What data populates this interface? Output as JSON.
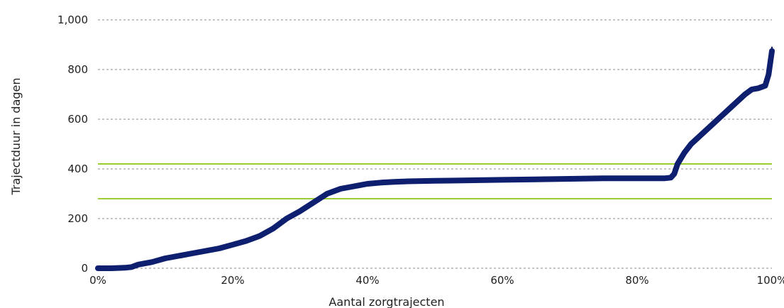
{
  "chart_data": {
    "type": "line",
    "title": "",
    "xlabel": "Aantal zorgtrajecten",
    "ylabel": "Trajectduur in dagen",
    "xlim": [
      0,
      100
    ],
    "ylim": [
      0,
      1000
    ],
    "x_ticks": [
      {
        "value": 0,
        "label": "0%"
      },
      {
        "value": 20,
        "label": "20%"
      },
      {
        "value": 40,
        "label": "40%"
      },
      {
        "value": 60,
        "label": "60%"
      },
      {
        "value": 80,
        "label": "80%"
      },
      {
        "value": 100,
        "label": "100%"
      }
    ],
    "y_ticks": [
      {
        "value": 0,
        "label": "0"
      },
      {
        "value": 200,
        "label": "200"
      },
      {
        "value": 400,
        "label": "400"
      },
      {
        "value": 600,
        "label": "600"
      },
      {
        "value": 800,
        "label": "800"
      },
      {
        "value": 1000,
        "label": "1,000"
      }
    ],
    "grid": "horizontal-dashed",
    "series": [
      {
        "color": "#0d1f6e",
        "x": [
          0,
          2,
          4,
          5,
          6,
          8,
          10,
          12,
          14,
          16,
          18,
          20,
          22,
          24,
          26,
          28,
          30,
          32,
          34,
          36,
          38,
          40,
          42,
          44,
          46,
          50,
          55,
          60,
          65,
          70,
          75,
          80,
          84,
          85,
          85.5,
          86,
          87,
          88,
          90,
          92,
          94,
          96,
          97,
          98,
          99,
          99.5,
          100
        ],
        "y": [
          0,
          0,
          2,
          5,
          15,
          25,
          40,
          50,
          60,
          70,
          80,
          95,
          110,
          130,
          160,
          200,
          230,
          265,
          300,
          320,
          330,
          340,
          345,
          348,
          350,
          352,
          354,
          356,
          358,
          360,
          362,
          362,
          362,
          365,
          380,
          420,
          465,
          500,
          550,
          600,
          650,
          700,
          720,
          725,
          735,
          780,
          875
        ]
      }
    ],
    "reference_lines": [
      {
        "y": 420,
        "color": "#9acd32"
      },
      {
        "y": 280,
        "color": "#9acd32"
      }
    ]
  }
}
